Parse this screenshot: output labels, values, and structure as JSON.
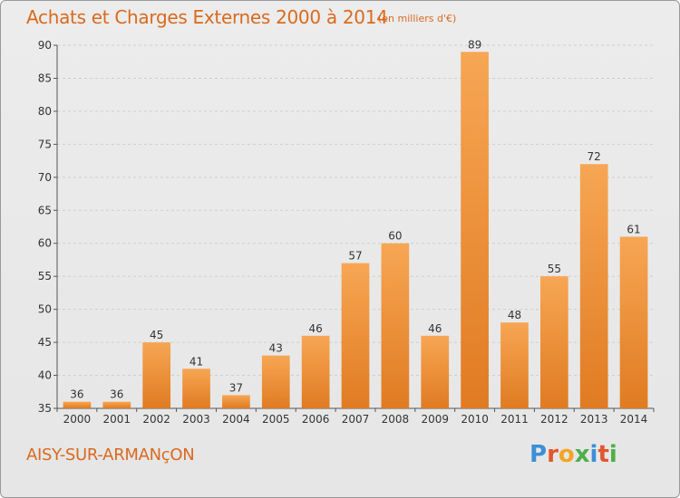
{
  "header": {
    "title": "Achats et Charges Externes 2000 à 2014",
    "subtitle": "(en milliers d'€)"
  },
  "footer": {
    "place": "AISY-SUR-ARMANçON",
    "logo_letters": [
      "P",
      "r",
      "o",
      "x",
      "i",
      "t",
      "i"
    ]
  },
  "chart_data": {
    "type": "bar",
    "title": "Achats et Charges Externes 2000 à 2014",
    "subtitle": "(en milliers d'€)",
    "categories": [
      "2000",
      "2001",
      "2002",
      "2003",
      "2004",
      "2005",
      "2006",
      "2007",
      "2008",
      "2009",
      "2010",
      "2011",
      "2012",
      "2013",
      "2014"
    ],
    "values": [
      36,
      36,
      45,
      41,
      37,
      43,
      46,
      57,
      60,
      46,
      89,
      48,
      55,
      72,
      61
    ],
    "ylim": [
      35,
      90
    ],
    "yticks": [
      35,
      40,
      45,
      50,
      55,
      60,
      65,
      70,
      75,
      80,
      85,
      90
    ],
    "grid": true,
    "colors": {
      "bar_light": "#f7a654",
      "bar_dark": "#e07b22",
      "grid": "#cfcfcf",
      "axis": "#555555",
      "text": "#d96a1e"
    }
  }
}
